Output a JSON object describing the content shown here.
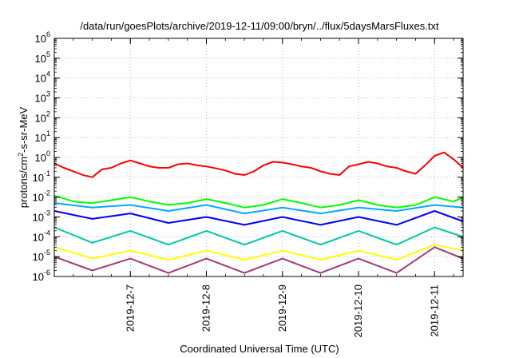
{
  "chart_data": {
    "type": "line",
    "title": "/data/run/goesPlots/archive/2019-12-11/09:00/bryn/../flux/5daysMarsFluxes.txt",
    "xlabel": "Coordinated Universal Time (UTC)",
    "ylabel": "protons/cm²-s-sr-MeV",
    "ylabel_parts": {
      "before": "protons/cm",
      "sup": "2",
      "after": "-s-sr-MeV"
    },
    "x_range_days": [
      "2019-12-06 00:00",
      "2019-12-11 09:00"
    ],
    "xtick_labels": [
      "2019-12-7",
      "2019-12-8",
      "2019-12-9",
      "2019-12-10",
      "2019-12-11"
    ],
    "xtick_values": [
      "2019-12-07",
      "2019-12-08",
      "2019-12-09",
      "2019-12-10",
      "2019-12-11"
    ],
    "y_scale": "log",
    "ylim": [
      1e-06,
      1000000.0
    ],
    "ytick_exponents": [
      -6,
      -5,
      -4,
      -3,
      -2,
      -1,
      0,
      1,
      2,
      3,
      4,
      5,
      6
    ],
    "ytick_base": "10",
    "grid": true,
    "series": [
      {
        "color": "#ff0000",
        "x": [
          "2019-12-06 00:00",
          "2019-12-06 03:00",
          "2019-12-06 06:00",
          "2019-12-06 09:00",
          "2019-12-06 12:00",
          "2019-12-06 15:00",
          "2019-12-06 18:00",
          "2019-12-06 21:00",
          "2019-12-07 00:00",
          "2019-12-07 03:00",
          "2019-12-07 06:00",
          "2019-12-07 09:00",
          "2019-12-07 12:00",
          "2019-12-07 15:00",
          "2019-12-07 18:00",
          "2019-12-07 21:00",
          "2019-12-08 00:00",
          "2019-12-08 03:00",
          "2019-12-08 06:00",
          "2019-12-08 09:00",
          "2019-12-08 12:00",
          "2019-12-08 15:00",
          "2019-12-08 18:00",
          "2019-12-08 21:00",
          "2019-12-09 00:00",
          "2019-12-09 03:00",
          "2019-12-09 06:00",
          "2019-12-09 09:00",
          "2019-12-09 12:00",
          "2019-12-09 15:00",
          "2019-12-09 18:00",
          "2019-12-09 21:00",
          "2019-12-10 00:00",
          "2019-12-10 03:00",
          "2019-12-10 06:00",
          "2019-12-10 09:00",
          "2019-12-10 12:00",
          "2019-12-10 15:00",
          "2019-12-10 18:00",
          "2019-12-10 21:00",
          "2019-12-11 00:00",
          "2019-12-11 03:00",
          "2019-12-11 06:00",
          "2019-12-11 09:00"
        ],
        "values": [
          0.5,
          0.3,
          0.2,
          0.13,
          0.1,
          0.25,
          0.3,
          0.5,
          0.7,
          0.5,
          0.35,
          0.3,
          0.3,
          0.45,
          0.5,
          0.4,
          0.35,
          0.28,
          0.22,
          0.15,
          0.13,
          0.2,
          0.4,
          0.6,
          0.55,
          0.45,
          0.35,
          0.3,
          0.2,
          0.15,
          0.13,
          0.35,
          0.45,
          0.6,
          0.5,
          0.35,
          0.3,
          0.2,
          0.15,
          0.4,
          1.2,
          1.8,
          0.8,
          0.3
        ]
      },
      {
        "color": "#00ff00",
        "x": [
          "2019-12-06 00:00",
          "2019-12-06 06:00",
          "2019-12-06 12:00",
          "2019-12-06 18:00",
          "2019-12-07 00:00",
          "2019-12-07 06:00",
          "2019-12-07 12:00",
          "2019-12-07 18:00",
          "2019-12-08 00:00",
          "2019-12-08 06:00",
          "2019-12-08 12:00",
          "2019-12-08 18:00",
          "2019-12-09 00:00",
          "2019-12-09 06:00",
          "2019-12-09 12:00",
          "2019-12-09 18:00",
          "2019-12-10 00:00",
          "2019-12-10 06:00",
          "2019-12-10 12:00",
          "2019-12-10 18:00",
          "2019-12-11 00:00",
          "2019-12-11 06:00",
          "2019-12-11 09:00"
        ],
        "values": [
          0.012,
          0.006,
          0.005,
          0.007,
          0.01,
          0.006,
          0.004,
          0.005,
          0.008,
          0.005,
          0.003,
          0.004,
          0.008,
          0.005,
          0.003,
          0.004,
          0.007,
          0.004,
          0.003,
          0.004,
          0.01,
          0.006,
          0.01
        ]
      },
      {
        "color": "#00aaff",
        "x": [
          "2019-12-06 00:00",
          "2019-12-06 12:00",
          "2019-12-07 00:00",
          "2019-12-07 12:00",
          "2019-12-08 00:00",
          "2019-12-08 12:00",
          "2019-12-09 00:00",
          "2019-12-09 12:00",
          "2019-12-10 00:00",
          "2019-12-10 12:00",
          "2019-12-11 00:00",
          "2019-12-11 09:00"
        ],
        "values": [
          0.005,
          0.003,
          0.004,
          0.002,
          0.004,
          0.0015,
          0.003,
          0.0015,
          0.003,
          0.002,
          0.004,
          0.003
        ]
      },
      {
        "color": "#0000ff",
        "x": [
          "2019-12-06 00:00",
          "2019-12-06 12:00",
          "2019-12-07 00:00",
          "2019-12-07 12:00",
          "2019-12-08 00:00",
          "2019-12-08 12:00",
          "2019-12-09 00:00",
          "2019-12-09 12:00",
          "2019-12-10 00:00",
          "2019-12-10 12:00",
          "2019-12-11 00:00",
          "2019-12-11 09:00"
        ],
        "values": [
          0.002,
          0.0008,
          0.0015,
          0.0005,
          0.001,
          0.0004,
          0.001,
          0.0004,
          0.001,
          0.0004,
          0.002,
          0.0006
        ]
      },
      {
        "color": "#00c8a0",
        "x": [
          "2019-12-06 00:00",
          "2019-12-06 12:00",
          "2019-12-07 00:00",
          "2019-12-07 12:00",
          "2019-12-08 00:00",
          "2019-12-08 12:00",
          "2019-12-09 00:00",
          "2019-12-09 12:00",
          "2019-12-10 00:00",
          "2019-12-10 12:00",
          "2019-12-11 00:00",
          "2019-12-11 09:00"
        ],
        "values": [
          0.0003,
          5e-05,
          0.0002,
          4e-05,
          0.0002,
          4e-05,
          0.0002,
          4e-05,
          0.0002,
          4e-05,
          0.0003,
          0.0001
        ]
      },
      {
        "color": "#ffff00",
        "x": [
          "2019-12-06 00:00",
          "2019-12-06 12:00",
          "2019-12-07 00:00",
          "2019-12-07 12:00",
          "2019-12-08 00:00",
          "2019-12-08 12:00",
          "2019-12-09 00:00",
          "2019-12-09 12:00",
          "2019-12-10 00:00",
          "2019-12-10 12:00",
          "2019-12-11 00:00",
          "2019-12-11 09:00"
        ],
        "values": [
          3e-05,
          8e-06,
          2e-05,
          7e-06,
          2e-05,
          7e-06,
          2e-05,
          7e-06,
          2e-05,
          7e-06,
          4e-05,
          2e-05
        ]
      },
      {
        "color": "#a03c78",
        "x": [
          "2019-12-06 00:00",
          "2019-12-06 12:00",
          "2019-12-07 00:00",
          "2019-12-07 12:00",
          "2019-12-08 00:00",
          "2019-12-08 12:00",
          "2019-12-09 00:00",
          "2019-12-09 12:00",
          "2019-12-10 00:00",
          "2019-12-10 12:00",
          "2019-12-11 00:00",
          "2019-12-11 09:00"
        ],
        "values": [
          1e-05,
          2e-06,
          8e-06,
          1.5e-06,
          8e-06,
          1.5e-06,
          8e-06,
          1.5e-06,
          8e-06,
          1.5e-06,
          3e-05,
          8e-06
        ]
      }
    ]
  }
}
